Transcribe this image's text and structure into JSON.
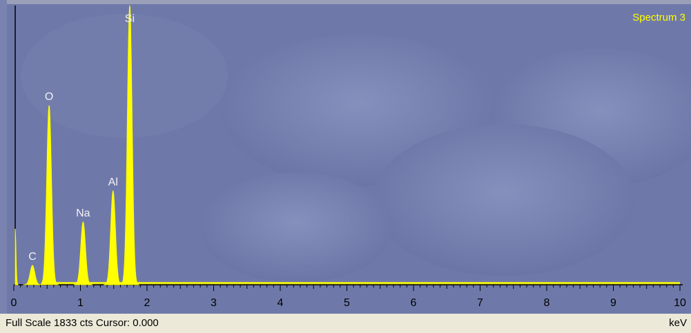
{
  "chart_data": {
    "type": "spectrum",
    "title": "Spectrum 3",
    "x_label": "keV",
    "status": "Full Scale 1833 cts Cursor: 0.000",
    "color": "#ffff00",
    "peaks": [
      {
        "label": null,
        "energy": 0.02,
        "counts": 367
      },
      {
        "label": "C",
        "energy": 0.28,
        "counts": 127
      },
      {
        "label": "O",
        "energy": 0.53,
        "counts": 1177
      },
      {
        "label": "Na",
        "energy": 1.04,
        "counts": 412
      },
      {
        "label": "Al",
        "energy": 1.49,
        "counts": 616
      },
      {
        "label": "Si",
        "energy": 1.74,
        "counts": 1833
      }
    ],
    "xlim": [
      0,
      10
    ],
    "xticks": [
      0,
      1,
      2,
      3,
      4,
      5,
      6,
      7,
      8,
      9,
      10
    ],
    "ylim": [
      0,
      1833
    ]
  }
}
